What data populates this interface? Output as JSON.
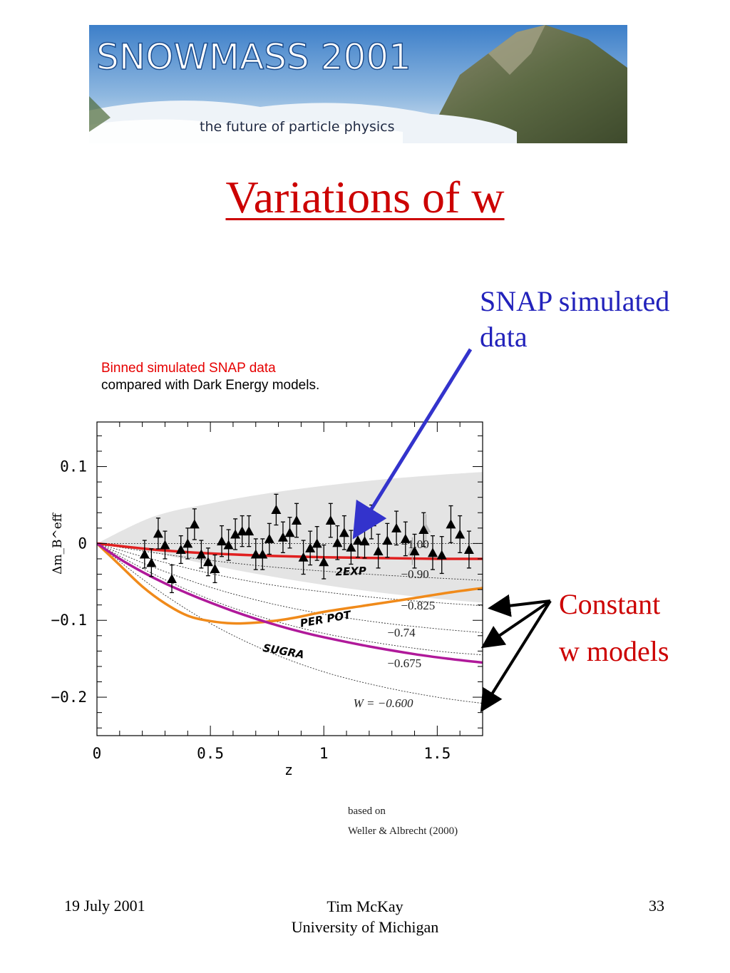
{
  "banner": {
    "title": "SNOWMASS 2001",
    "tagline": "the future of particle physics"
  },
  "slide": {
    "title": "Variations of w"
  },
  "callouts": {
    "snap_line1": "SNAP simulated",
    "snap_line2": "data",
    "constant_line1": "Constant",
    "constant_line2": "w models"
  },
  "caption": {
    "line1": "Binned simulated SNAP data",
    "line2": "compared with Dark Energy models."
  },
  "reference": {
    "line1": "based on",
    "line2": "Weller & Albrecht (2000)"
  },
  "footer": {
    "date": "19 July 2001",
    "author": "Tim McKay",
    "institution": "University of Michigan",
    "page": "33"
  },
  "colors": {
    "title": "#cc0000",
    "callout_snap": "#2222bb",
    "arrow_snap": "#3333cc",
    "caption_red": "#e60000",
    "2EXP": "#e02020",
    "PER POT": "#f08a1a",
    "SUGRA": "#b0199a"
  },
  "chart_data": {
    "type": "scatter",
    "xlabel": "z",
    "ylabel": "Δm_B^eff",
    "xlim": [
      0,
      1.7
    ],
    "ylim": [
      -0.25,
      0.158
    ],
    "xticks": [
      0,
      0.5,
      1,
      1.5
    ],
    "xtick_labels": [
      "0",
      "0.5",
      "1",
      "1.5"
    ],
    "yticks": [
      0.1,
      0,
      -0.1,
      -0.2
    ],
    "ytick_labels": [
      "0.1",
      "0",
      "−0.1",
      "−0.2"
    ],
    "uncertainty_band": {
      "x": [
        0,
        0.25,
        0.5,
        0.75,
        1.0,
        1.25,
        1.5,
        1.7
      ],
      "upper": [
        0,
        0.035,
        0.052,
        0.065,
        0.075,
        0.083,
        0.089,
        0.093
      ],
      "lower": [
        0,
        -0.012,
        -0.028,
        -0.042,
        -0.054,
        -0.064,
        -0.072,
        -0.077
      ]
    },
    "constant_w_models": [
      {
        "label": "−1.00",
        "w": -1.0,
        "x": [
          0,
          1.7
        ],
        "y": [
          0,
          0
        ]
      },
      {
        "label": "−0.90",
        "w": -0.9,
        "x": [
          0,
          0.25,
          0.5,
          0.75,
          1.0,
          1.25,
          1.5,
          1.7
        ],
        "y": [
          0,
          -0.012,
          -0.022,
          -0.03,
          -0.036,
          -0.041,
          -0.045,
          -0.048
        ]
      },
      {
        "label": "−0.825",
        "w": -0.825,
        "x": [
          0,
          0.25,
          0.5,
          0.75,
          1.0,
          1.25,
          1.5,
          1.7
        ],
        "y": [
          0,
          -0.021,
          -0.039,
          -0.053,
          -0.063,
          -0.071,
          -0.077,
          -0.081
        ]
      },
      {
        "label": "−0.74",
        "w": -0.74,
        "x": [
          0,
          0.25,
          0.5,
          0.75,
          1.0,
          1.25,
          1.5,
          1.7
        ],
        "y": [
          0,
          -0.031,
          -0.057,
          -0.077,
          -0.092,
          -0.103,
          -0.111,
          -0.116
        ]
      },
      {
        "label": "−0.675",
        "w": -0.675,
        "x": [
          0,
          0.25,
          0.5,
          0.75,
          1.0,
          1.25,
          1.5,
          1.7
        ],
        "y": [
          0,
          -0.04,
          -0.073,
          -0.098,
          -0.117,
          -0.13,
          -0.14,
          -0.145
        ]
      },
      {
        "label": "W = −0.600",
        "w": -0.6,
        "x": [
          0,
          0.25,
          0.5,
          0.75,
          1.0,
          1.25,
          1.5,
          1.7
        ],
        "y": [
          0,
          -0.057,
          -0.104,
          -0.14,
          -0.167,
          -0.186,
          -0.2,
          -0.208
        ]
      }
    ],
    "models": [
      {
        "name": "2EXP",
        "x": [
          0,
          0.25,
          0.5,
          0.75,
          1.0,
          1.25,
          1.5,
          1.7
        ],
        "y": [
          0,
          -0.008,
          -0.013,
          -0.016,
          -0.018,
          -0.019,
          -0.02,
          -0.02
        ]
      },
      {
        "name": "PER POT",
        "x": [
          0,
          0.1,
          0.2,
          0.3,
          0.4,
          0.5,
          0.6,
          0.7,
          0.8,
          0.9,
          1.0,
          1.2,
          1.4,
          1.55,
          1.7
        ],
        "y": [
          0,
          -0.028,
          -0.056,
          -0.078,
          -0.094,
          -0.101,
          -0.104,
          -0.103,
          -0.1,
          -0.095,
          -0.089,
          -0.08,
          -0.071,
          -0.064,
          -0.058
        ]
      },
      {
        "name": "SUGRA",
        "x": [
          0,
          0.1,
          0.2,
          0.3,
          0.4,
          0.5,
          0.6,
          0.7,
          0.8,
          0.9,
          1.0,
          1.2,
          1.4,
          1.55,
          1.7
        ],
        "y": [
          0,
          -0.02,
          -0.037,
          -0.052,
          -0.065,
          -0.077,
          -0.088,
          -0.098,
          -0.107,
          -0.115,
          -0.122,
          -0.134,
          -0.144,
          -0.15,
          -0.155
        ]
      }
    ],
    "data_points": {
      "name": "Binned simulated SNAP data",
      "x": [
        0.21,
        0.24,
        0.27,
        0.3,
        0.33,
        0.37,
        0.4,
        0.43,
        0.46,
        0.49,
        0.52,
        0.55,
        0.58,
        0.61,
        0.64,
        0.67,
        0.7,
        0.73,
        0.76,
        0.79,
        0.82,
        0.85,
        0.88,
        0.91,
        0.94,
        0.97,
        1.0,
        1.03,
        1.06,
        1.09,
        1.12,
        1.15,
        1.18,
        1.21,
        1.24,
        1.28,
        1.32,
        1.36,
        1.4,
        1.44,
        1.48,
        1.52,
        1.56,
        1.6,
        1.64
      ],
      "y": [
        -0.014,
        -0.025,
        0.013,
        -0.002,
        -0.046,
        -0.008,
        0.0,
        0.025,
        -0.014,
        -0.024,
        -0.033,
        0.003,
        -0.002,
        0.012,
        0.016,
        0.016,
        -0.014,
        -0.014,
        0.006,
        0.044,
        0.008,
        0.014,
        0.03,
        -0.018,
        -0.006,
        0.0,
        -0.024,
        0.03,
        0.001,
        0.014,
        -0.005,
        0.004,
        0.003,
        0.028,
        -0.01,
        0.004,
        0.02,
        0.006,
        -0.01,
        0.018,
        -0.012,
        -0.015,
        0.025,
        0.012,
        -0.008
      ],
      "error": [
        0.018,
        0.018,
        0.02,
        0.018,
        0.018,
        0.018,
        0.02,
        0.02,
        0.018,
        0.018,
        0.018,
        0.02,
        0.02,
        0.02,
        0.02,
        0.02,
        0.02,
        0.02,
        0.02,
        0.02,
        0.02,
        0.02,
        0.022,
        0.022,
        0.022,
        0.022,
        0.022,
        0.022,
        0.022,
        0.022,
        0.022,
        0.022,
        0.022,
        0.022,
        0.022,
        0.022,
        0.022,
        0.022,
        0.022,
        0.022,
        0.022,
        0.024,
        0.024,
        0.024,
        0.024
      ]
    },
    "faded_points": {
      "x": [
        1.39,
        1.45
      ],
      "y": [
        -0.01,
        0.02
      ],
      "error": [
        0.018,
        0.018
      ]
    },
    "grid": false,
    "legend": "none (inline labels)"
  }
}
